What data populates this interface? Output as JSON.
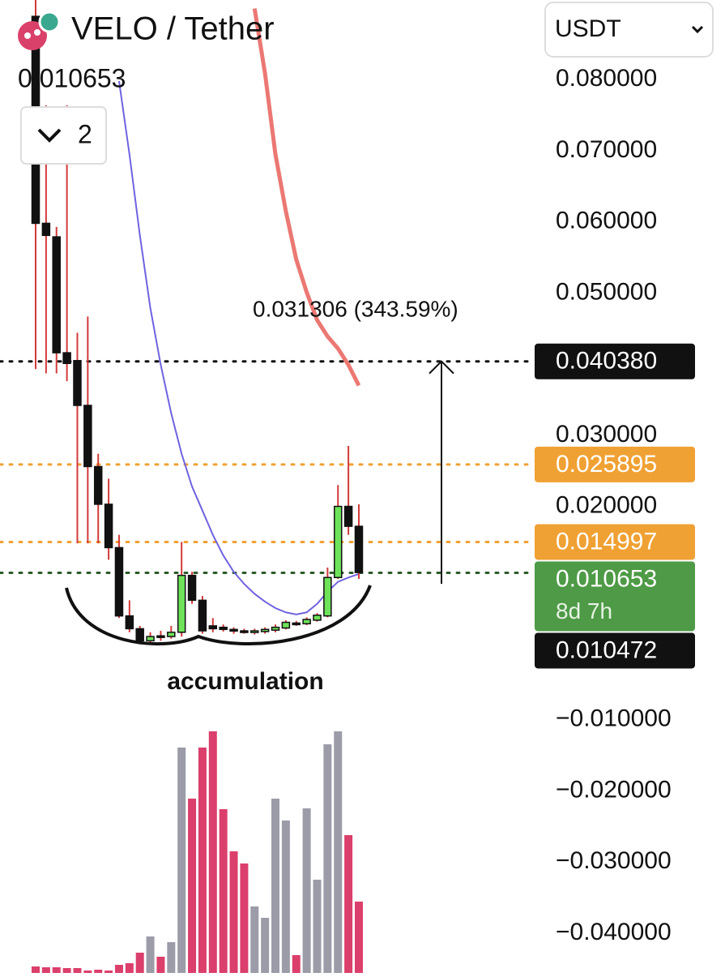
{
  "header": {
    "symbol": "VELO / Tether",
    "price": "0.010653",
    "indicator_count": "2",
    "currency": "USDT"
  },
  "chart_data": {
    "type": "candlestick",
    "ylim": [
      -0.0456,
      0.0912
    ],
    "yticks": [
      {
        "value": 0.08,
        "label": "0.080000"
      },
      {
        "value": 0.07,
        "label": "0.070000"
      },
      {
        "value": 0.06,
        "label": "0.060000"
      },
      {
        "value": 0.05,
        "label": "0.050000"
      },
      {
        "value": 0.03,
        "label": "0.030000"
      },
      {
        "value": 0.02,
        "label": "0.020000"
      },
      {
        "value": -0.01,
        "label": "−0.010000"
      },
      {
        "value": -0.02,
        "label": "−0.020000"
      },
      {
        "value": -0.03,
        "label": "−0.030000"
      },
      {
        "value": -0.04,
        "label": "−0.040000"
      }
    ],
    "open": [
      0.0889,
      0.0598,
      0.0579,
      0.0416,
      0.0405,
      0.0342,
      0.0256,
      0.0203,
      0.0142,
      0.0046,
      0.0028,
      0.0011,
      0.0018,
      0.0017,
      0.0023,
      0.0103,
      0.0068,
      0.0032,
      0.003,
      0.0027,
      0.0025,
      0.0023,
      0.0024,
      0.0026,
      0.0029,
      0.0036,
      0.0035,
      0.004,
      0.0046,
      0.01,
      0.02,
      0.0172
    ],
    "high": [
      0.0912,
      0.0764,
      0.0593,
      0.0764,
      0.0444,
      0.0467,
      0.0274,
      0.0239,
      0.016,
      0.0068,
      0.0032,
      0.0023,
      0.0025,
      0.0032,
      0.015,
      0.0108,
      0.0074,
      0.0043,
      0.0034,
      0.003,
      0.0028,
      0.0028,
      0.003,
      0.0034,
      0.004,
      0.0039,
      0.0044,
      0.005,
      0.0114,
      0.023,
      0.0285,
      0.0203
    ],
    "low": [
      0.0393,
      0.0387,
      0.0387,
      0.0376,
      0.0148,
      0.0148,
      0.0148,
      0.0125,
      0.0043,
      0.0023,
      0.0006,
      0.0009,
      0.0011,
      0.0014,
      0.0017,
      0.0063,
      0.0021,
      0.0023,
      0.0024,
      0.0021,
      0.0021,
      0.002,
      0.0021,
      0.0023,
      0.0027,
      0.0032,
      0.0033,
      0.0038,
      0.0044,
      0.0098,
      0.016,
      0.0098
    ],
    "close": [
      0.0598,
      0.0581,
      0.0416,
      0.0401,
      0.0342,
      0.0256,
      0.0203,
      0.0142,
      0.0046,
      0.0028,
      0.0011,
      0.0017,
      0.0016,
      0.0023,
      0.0103,
      0.0068,
      0.0025,
      0.0028,
      0.0027,
      0.0025,
      0.0024,
      0.0025,
      0.0027,
      0.003,
      0.0037,
      0.0035,
      0.0041,
      0.0047,
      0.01,
      0.02,
      0.0172,
      0.0107
    ],
    "up_color": "#6ee35a",
    "down_color": "#111111",
    "wick_color": "#d23a3a",
    "moving_averages": [
      {
        "color": "#6f63e0",
        "values": [
          null,
          null,
          null,
          null,
          null,
          null,
          null,
          null,
          0.0798,
          0.0695,
          0.0581,
          0.0479,
          0.0399,
          0.0331,
          0.0274,
          0.0228,
          0.0194,
          0.016,
          0.0131,
          0.0108,
          0.0091,
          0.0077,
          0.0066,
          0.0057,
          0.0051,
          0.0048,
          0.0051,
          0.0063,
          0.008,
          0.0094,
          0.01,
          0.0105
        ]
      },
      {
        "color": "#e8605a",
        "values": [
          null,
          null,
          null,
          null,
          null,
          null,
          null,
          null,
          null,
          null,
          null,
          null,
          null,
          null,
          null,
          null,
          null,
          null,
          null,
          null,
          null,
          0.09,
          0.0809,
          0.0695,
          0.0615,
          0.0547,
          0.0501,
          0.0462,
          0.0439,
          0.0422,
          0.0399,
          0.037
        ]
      }
    ],
    "volume": {
      "values": [
        8,
        7,
        7,
        6,
        6,
        3,
        4,
        3,
        10,
        12,
        25,
        45,
        20,
        38,
        278,
        215,
        278,
        298,
        202,
        150,
        135,
        82,
        68,
        215,
        188,
        22,
        203,
        115,
        282,
        298,
        170,
        88
      ],
      "vlim": [
        0,
        300
      ],
      "up_color": "#9b9ca8",
      "down_color": "#db3f6c"
    },
    "price_lines": [
      {
        "value": 0.04038,
        "label": "0.040380",
        "box_color": "#111111",
        "line_color": "#111111"
      },
      {
        "value": 0.025895,
        "label": "0.025895",
        "box_color": "#f0a133",
        "line_color": "#f0a133"
      },
      {
        "value": 0.014997,
        "label": "0.014997",
        "box_color": "#f0a133",
        "line_color": "#f0a133"
      },
      {
        "value": 0.010653,
        "label": "0.010653",
        "countdown": "8d 7h",
        "box_color": "#4e9a46",
        "line_color": "#2d5a2a"
      },
      {
        "value": 0.010472,
        "label": "0.010472",
        "box_color": "#111111"
      }
    ],
    "measurement": {
      "from": 0.0091,
      "to": 0.0404,
      "label": "0.031306 (343.59%)"
    },
    "annotation": "accumulation"
  }
}
